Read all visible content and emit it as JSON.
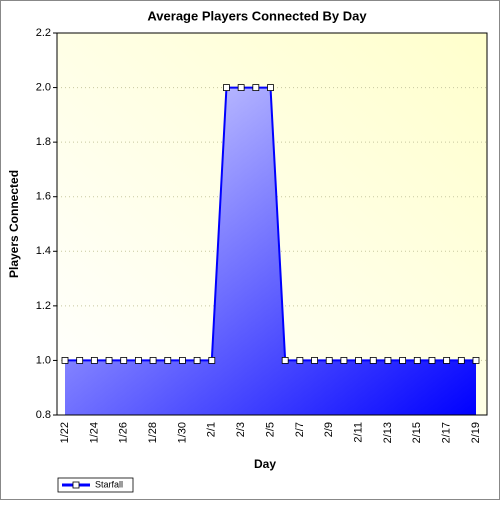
{
  "chart_data": {
    "type": "area",
    "title": "Average Players Connected By Day",
    "x_label": "Day",
    "y_label": "Players Connected",
    "categories": [
      "1/22",
      null,
      "1/24",
      null,
      "1/26",
      null,
      "1/28",
      null,
      "1/30",
      null,
      "2/1",
      null,
      "2/3",
      null,
      "2/5",
      null,
      "2/7",
      null,
      "2/9",
      null,
      "2/11",
      null,
      "2/13",
      null,
      "2/15",
      null,
      "2/17",
      null,
      "2/19"
    ],
    "series": [
      {
        "name": "Starfall",
        "color": "#0000ff",
        "values": [
          1,
          1,
          1,
          1,
          1,
          1,
          1,
          1,
          1,
          1,
          1,
          2,
          2,
          2,
          2,
          1,
          1,
          1,
          1,
          1,
          1,
          1,
          1,
          1,
          1,
          1,
          1,
          1,
          1
        ]
      }
    ],
    "ylim": [
      0.8,
      2.2
    ],
    "yticks": [
      0.8,
      {
        "value": 1,
        "label": "1.0"
      },
      1.2,
      1.4,
      1.6,
      1.8,
      {
        "value": 2,
        "label": "2.0"
      },
      2.2
    ],
    "grid": true,
    "legend": "bottom-left"
  }
}
